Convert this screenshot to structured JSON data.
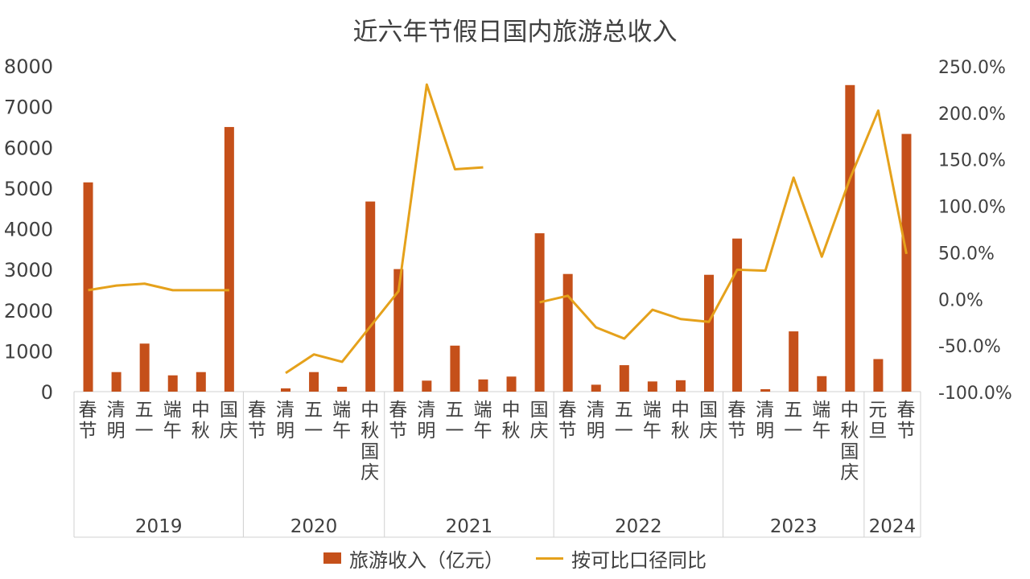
{
  "chart_data": {
    "type": "bar",
    "title": "近六年节假日国内旅游总收入",
    "groups": [
      {
        "year": "2019",
        "holidays": [
          "春节",
          "清明",
          "五一",
          "端午",
          "中秋",
          "国庆"
        ]
      },
      {
        "year": "2020",
        "holidays": [
          "春节",
          "清明",
          "五一",
          "端午",
          "中秋国庆"
        ]
      },
      {
        "year": "2021",
        "holidays": [
          "春节",
          "清明",
          "五一",
          "端午",
          "中秋",
          "国庆"
        ]
      },
      {
        "year": "2022",
        "holidays": [
          "春节",
          "清明",
          "五一",
          "端午",
          "中秋",
          "国庆"
        ]
      },
      {
        "year": "2023",
        "holidays": [
          "春节",
          "清明",
          "五一",
          "端午",
          "中秋国庆"
        ]
      },
      {
        "year": "2024",
        "holidays": [
          "元旦",
          "春节"
        ]
      }
    ],
    "series": [
      {
        "name": "旅游收入（亿元）",
        "type": "bar",
        "axis": "left",
        "color": "#C5501A",
        "values": [
          5140,
          480,
          1180,
          400,
          480,
          6500,
          null,
          80,
          480,
          120,
          4670,
          3010,
          270,
          1130,
          300,
          370,
          3890,
          2890,
          170,
          650,
          250,
          280,
          2870,
          3760,
          60,
          1480,
          380,
          7530,
          800,
          6330
        ]
      },
      {
        "name": "按可比口径同比",
        "type": "line",
        "axis": "right",
        "color": "#E5A11B",
        "values": [
          9,
          14,
          16,
          9,
          9,
          9,
          null,
          -80,
          -60,
          -68,
          -30,
          8,
          230,
          139,
          141,
          null,
          -4,
          3,
          -31,
          -43,
          -12,
          -22,
          -25,
          31,
          30,
          130,
          45,
          129,
          202,
          48
        ]
      }
    ],
    "y_left": {
      "min": 0,
      "max": 8000,
      "ticks": [
        "0",
        "1000",
        "2000",
        "3000",
        "4000",
        "5000",
        "6000",
        "7000",
        "8000"
      ]
    },
    "y_right": {
      "min": -100,
      "max": 250,
      "ticks": [
        "-100.0%",
        "-50.0%",
        "0.0%",
        "50.0%",
        "100.0%",
        "150.0%",
        "200.0%",
        "250.0%"
      ]
    },
    "legend_position": "bottom",
    "grid": false
  }
}
